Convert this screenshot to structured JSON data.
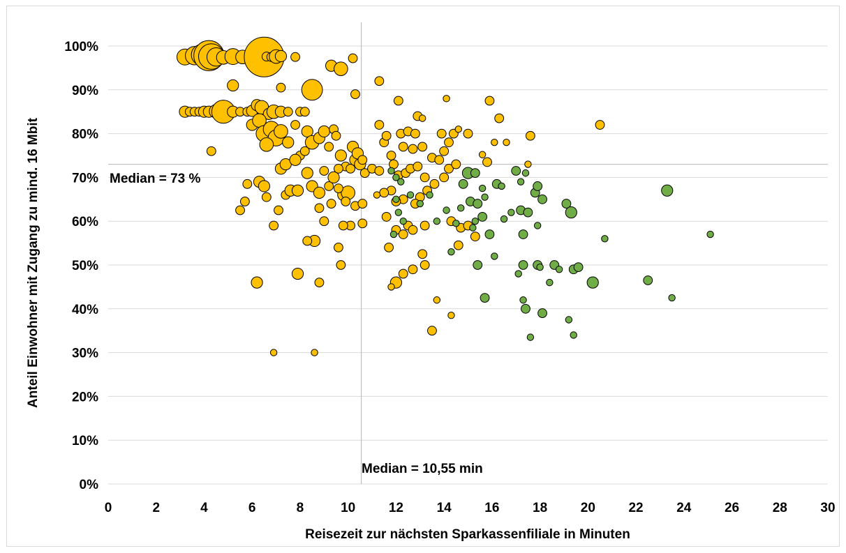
{
  "chart_data": {
    "type": "scatter",
    "title": "",
    "xlabel": "Reisezeit zur nächsten Sparkassenfiliale in Minuten",
    "ylabel": "Anteil Einwohner mit Zugang zu mind. 16 Mbit",
    "xlim": [
      0,
      30
    ],
    "ylim": [
      0,
      100
    ],
    "x_ticks": [
      0,
      2,
      4,
      6,
      8,
      10,
      12,
      14,
      16,
      18,
      20,
      22,
      24,
      26,
      28,
      30
    ],
    "y_ticks": [
      0,
      10,
      20,
      30,
      40,
      50,
      60,
      70,
      80,
      90,
      100
    ],
    "y_tick_suffix": "%",
    "grid": "horizontal",
    "legend": "none",
    "colors": {
      "orange": "#FFC000",
      "green": "#70AD47",
      "outline": "#000000",
      "grid": "#d9d9d9",
      "median_line": "#bfbfbf"
    },
    "median_x": {
      "value": 10.55,
      "label": "Median = 10,55 min"
    },
    "median_y": {
      "value": 73,
      "label": "Median = 73 %"
    },
    "series": [
      {
        "color": "#FFC000",
        "points": [
          [
            3.2,
            97.5,
            5
          ],
          [
            3.6,
            97.8,
            6
          ],
          [
            3.9,
            98,
            7
          ],
          [
            4.2,
            97.8,
            11
          ],
          [
            4.3,
            97.6,
            9
          ],
          [
            4.5,
            97.5,
            6
          ],
          [
            4.8,
            97.4,
            4
          ],
          [
            5.2,
            97.6,
            5
          ],
          [
            5.6,
            97.5,
            4
          ],
          [
            6.5,
            97.5,
            15
          ],
          [
            6.6,
            97.6,
            2
          ],
          [
            6.8,
            97.5,
            2
          ],
          [
            7.0,
            97.6,
            4
          ],
          [
            7.2,
            97.7,
            3
          ],
          [
            7.8,
            97.5,
            2
          ],
          [
            10.2,
            97.2,
            2
          ],
          [
            3.2,
            85,
            3
          ],
          [
            3.4,
            85,
            2
          ],
          [
            3.6,
            85,
            2
          ],
          [
            3.8,
            85,
            2
          ],
          [
            4.0,
            85,
            3
          ],
          [
            4.2,
            85,
            3
          ],
          [
            4.5,
            85.1,
            4
          ],
          [
            4.8,
            85,
            8
          ],
          [
            5.2,
            85,
            3
          ],
          [
            5.5,
            85,
            2
          ],
          [
            5.8,
            85,
            2
          ],
          [
            6.0,
            85.2,
            3
          ],
          [
            6.2,
            86.5,
            3
          ],
          [
            6.4,
            86,
            4
          ],
          [
            6.7,
            84.5,
            3
          ],
          [
            6.9,
            85,
            4
          ],
          [
            7.2,
            85,
            3
          ],
          [
            7.5,
            85,
            2
          ],
          [
            8.0,
            85,
            2
          ],
          [
            8.2,
            85,
            2
          ],
          [
            8.5,
            90,
            7
          ],
          [
            9.3,
            95.5,
            3
          ],
          [
            9.7,
            94.8,
            4
          ],
          [
            11.3,
            92,
            2
          ],
          [
            7.2,
            90.5,
            2
          ],
          [
            5.2,
            91,
            3
          ],
          [
            10.3,
            89,
            2
          ],
          [
            6.0,
            82,
            3
          ],
          [
            6.3,
            83,
            4
          ],
          [
            6.5,
            80,
            5
          ],
          [
            6.8,
            81,
            5
          ],
          [
            7.0,
            79,
            5
          ],
          [
            6.6,
            77.5,
            4
          ],
          [
            7.2,
            80.5,
            4
          ],
          [
            7.5,
            78,
            3
          ],
          [
            7.8,
            82,
            2
          ],
          [
            8.0,
            75,
            2
          ],
          [
            8.3,
            80.5,
            3
          ],
          [
            8.5,
            78,
            4
          ],
          [
            8.8,
            79,
            3
          ],
          [
            9.0,
            80.5,
            3
          ],
          [
            9.2,
            77,
            2
          ],
          [
            9.4,
            81,
            2
          ],
          [
            9.5,
            79.5,
            2
          ],
          [
            9.7,
            75,
            3
          ],
          [
            9.9,
            72.5,
            2
          ],
          [
            7.2,
            72,
            3
          ],
          [
            7.4,
            73,
            3
          ],
          [
            7.8,
            74,
            3
          ],
          [
            8.2,
            76,
            2
          ],
          [
            4.3,
            76,
            2
          ],
          [
            5.5,
            62.5,
            2
          ],
          [
            5.7,
            64.5,
            2
          ],
          [
            5.8,
            68.5,
            2
          ],
          [
            6.3,
            69,
            3
          ],
          [
            6.5,
            68,
            3
          ],
          [
            6.6,
            65.5,
            2
          ],
          [
            6.9,
            59,
            2
          ],
          [
            7.1,
            62.5,
            2
          ],
          [
            7.4,
            66,
            2
          ],
          [
            7.6,
            67,
            3
          ],
          [
            7.9,
            67,
            3
          ],
          [
            8.3,
            71,
            3
          ],
          [
            8.5,
            68,
            3
          ],
          [
            8.8,
            66.5,
            3
          ],
          [
            9.0,
            71.5,
            2
          ],
          [
            9.2,
            68,
            2
          ],
          [
            9.4,
            70,
            3
          ],
          [
            9.6,
            72,
            2
          ],
          [
            9.8,
            66,
            3
          ],
          [
            10.0,
            66.5,
            4
          ],
          [
            10.1,
            72,
            2
          ],
          [
            10.3,
            74,
            3
          ],
          [
            10.5,
            73,
            3
          ],
          [
            10.7,
            71,
            2
          ],
          [
            10.2,
            77,
            3
          ],
          [
            10.4,
            75.5,
            3
          ],
          [
            10.6,
            74,
            2
          ],
          [
            11.0,
            72,
            2
          ],
          [
            11.3,
            71.5,
            2
          ],
          [
            11.5,
            78,
            2
          ],
          [
            11.3,
            82,
            2
          ],
          [
            11.6,
            79.5,
            2
          ],
          [
            11.8,
            75,
            2
          ],
          [
            11.9,
            73,
            2
          ],
          [
            12.1,
            87.5,
            2
          ],
          [
            12.2,
            80,
            2
          ],
          [
            12.5,
            80.5,
            2
          ],
          [
            12.8,
            80,
            2
          ],
          [
            12.9,
            84,
            2
          ],
          [
            13.1,
            83.5,
            1
          ],
          [
            12.3,
            77,
            2
          ],
          [
            12.7,
            76.5,
            2
          ],
          [
            13.1,
            77,
            2
          ],
          [
            12.1,
            70.5,
            2
          ],
          [
            12.4,
            71,
            2
          ],
          [
            12.6,
            72,
            2
          ],
          [
            12.9,
            72.5,
            2
          ],
          [
            13.2,
            70,
            2
          ],
          [
            13.5,
            74.5,
            2
          ],
          [
            13.8,
            74,
            2
          ],
          [
            14.0,
            76,
            2
          ],
          [
            14.2,
            78,
            2
          ],
          [
            13.9,
            80,
            2
          ],
          [
            14.1,
            88,
            1
          ],
          [
            14.4,
            80,
            2
          ],
          [
            14.6,
            81,
            1
          ],
          [
            15.0,
            80,
            2
          ],
          [
            14.2,
            72,
            2
          ],
          [
            14.5,
            73,
            2
          ],
          [
            14.0,
            70,
            2
          ],
          [
            13.6,
            68.5,
            2
          ],
          [
            13.3,
            67,
            2
          ],
          [
            13.0,
            65.5,
            2
          ],
          [
            12.8,
            64,
            2
          ],
          [
            12.3,
            65,
            2
          ],
          [
            12.0,
            64.5,
            2
          ],
          [
            11.8,
            67,
            2
          ],
          [
            11.5,
            66.5,
            2
          ],
          [
            11.2,
            66,
            1
          ],
          [
            10.3,
            63.5,
            2
          ],
          [
            10.6,
            64,
            2
          ],
          [
            10.1,
            59,
            2
          ],
          [
            10.6,
            59.5,
            2
          ],
          [
            9.9,
            64.5,
            2
          ],
          [
            9.6,
            67.5,
            2
          ],
          [
            9.3,
            64,
            2
          ],
          [
            9.0,
            60,
            2
          ],
          [
            8.8,
            63,
            2
          ],
          [
            8.6,
            55.5,
            3
          ],
          [
            8.3,
            55.5,
            2
          ],
          [
            8.8,
            46,
            2
          ],
          [
            9.7,
            50,
            2
          ],
          [
            9.6,
            54,
            2
          ],
          [
            9.8,
            59,
            2
          ],
          [
            7.9,
            48,
            3
          ],
          [
            6.2,
            46,
            3
          ],
          [
            6.9,
            30,
            1
          ],
          [
            8.6,
            30,
            1
          ],
          [
            11.7,
            54,
            2
          ],
          [
            11.6,
            61,
            2
          ],
          [
            12.0,
            58,
            2
          ],
          [
            12.3,
            57,
            2
          ],
          [
            12.5,
            59,
            2
          ],
          [
            12.7,
            58,
            2
          ],
          [
            13.2,
            59,
            2
          ],
          [
            13.1,
            52.5,
            2
          ],
          [
            13.2,
            50,
            2
          ],
          [
            12.7,
            49,
            2
          ],
          [
            12.3,
            48,
            2
          ],
          [
            12.0,
            46,
            3
          ],
          [
            11.8,
            45,
            1
          ],
          [
            13.5,
            35,
            2
          ],
          [
            13.7,
            42,
            1
          ],
          [
            14.3,
            38.5,
            1
          ],
          [
            14.6,
            54.5,
            2
          ],
          [
            14.3,
            60,
            2
          ],
          [
            14.7,
            58.5,
            2
          ],
          [
            15.0,
            59,
            2
          ],
          [
            15.3,
            56.5,
            2
          ],
          [
            15.6,
            75.2,
            1
          ],
          [
            15.8,
            73.5,
            2
          ],
          [
            15.9,
            87.5,
            2
          ],
          [
            16.1,
            78,
            1
          ],
          [
            16.3,
            83.5,
            2
          ],
          [
            16.6,
            78,
            1
          ],
          [
            17.5,
            73,
            1
          ],
          [
            17.6,
            79.5,
            2
          ],
          [
            20.5,
            82,
            2
          ]
        ]
      },
      {
        "color": "#70AD47",
        "points": [
          [
            11.8,
            71.5,
            1
          ],
          [
            12.0,
            70,
            1
          ],
          [
            12.2,
            69,
            1
          ],
          [
            12.0,
            65,
            1
          ],
          [
            12.1,
            62,
            1
          ],
          [
            12.3,
            60,
            1
          ],
          [
            11.9,
            57,
            1
          ],
          [
            12.6,
            66,
            1
          ],
          [
            13.0,
            64,
            1
          ],
          [
            13.4,
            66,
            1
          ],
          [
            13.7,
            60,
            1
          ],
          [
            14.1,
            62.5,
            1
          ],
          [
            14.3,
            53,
            1
          ],
          [
            14.5,
            59.5,
            1
          ],
          [
            14.7,
            63,
            1
          ],
          [
            14.8,
            68.5,
            2
          ],
          [
            15.0,
            71,
            3
          ],
          [
            15.3,
            71,
            2
          ],
          [
            15.6,
            67.5,
            1
          ],
          [
            15.9,
            57,
            2
          ],
          [
            15.1,
            64.5,
            2
          ],
          [
            15.4,
            64,
            2
          ],
          [
            15.6,
            61,
            2
          ],
          [
            15.3,
            60,
            1
          ],
          [
            15.2,
            58.5,
            1
          ],
          [
            15.7,
            65.5,
            1
          ],
          [
            16.2,
            68.5,
            2
          ],
          [
            16.4,
            68,
            1
          ],
          [
            16.8,
            62,
            1
          ],
          [
            16.5,
            60.5,
            1
          ],
          [
            17.0,
            71.5,
            2
          ],
          [
            17.2,
            69,
            1
          ],
          [
            17.4,
            71,
            1
          ],
          [
            17.2,
            62.5,
            2
          ],
          [
            17.5,
            62,
            2
          ],
          [
            17.8,
            66.5,
            2
          ],
          [
            17.9,
            68,
            2
          ],
          [
            18.1,
            65,
            2
          ],
          [
            17.3,
            57,
            2
          ],
          [
            17.9,
            59,
            1
          ],
          [
            17.1,
            48,
            1
          ],
          [
            17.3,
            50,
            2
          ],
          [
            17.9,
            50,
            2
          ],
          [
            18.4,
            46,
            1
          ],
          [
            18.0,
            49.5,
            1
          ],
          [
            17.3,
            42,
            1
          ],
          [
            17.4,
            40,
            2
          ],
          [
            18.1,
            39,
            2
          ],
          [
            17.6,
            33.5,
            1
          ],
          [
            16.1,
            52,
            1
          ],
          [
            15.7,
            42.5,
            2
          ],
          [
            15.4,
            50,
            2
          ],
          [
            18.6,
            50,
            2
          ],
          [
            18.8,
            49,
            1
          ],
          [
            19.1,
            64,
            2
          ],
          [
            19.3,
            62,
            3
          ],
          [
            19.4,
            49,
            2
          ],
          [
            19.6,
            49.5,
            2
          ],
          [
            19.2,
            37.5,
            1
          ],
          [
            19.4,
            34,
            1
          ],
          [
            20.2,
            46,
            3
          ],
          [
            20.7,
            56,
            1
          ],
          [
            22.5,
            46.5,
            2
          ],
          [
            23.3,
            67,
            3
          ],
          [
            23.5,
            42.5,
            1
          ],
          [
            25.1,
            57,
            1
          ]
        ]
      }
    ]
  }
}
